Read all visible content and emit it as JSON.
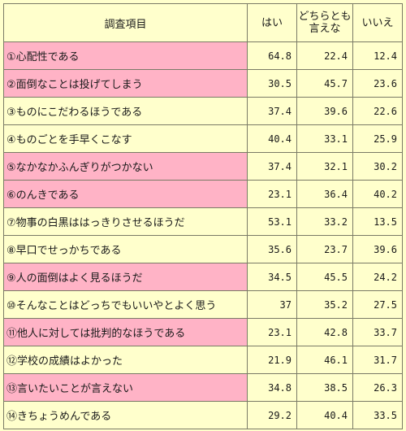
{
  "table": {
    "headers": {
      "item": "調査項目",
      "yes": "はい",
      "neither": "どちらとも言えな",
      "no": "いいえ"
    },
    "rows": [
      {
        "label": "①心配性である",
        "highlight": true,
        "yes": "64.8",
        "neither": "22.4",
        "no": "12.4"
      },
      {
        "label": "②面倒なことは投げてしまう",
        "highlight": true,
        "yes": "30.5",
        "neither": "45.7",
        "no": "23.6"
      },
      {
        "label": "③ものにこだわるほうである",
        "highlight": false,
        "yes": "37.4",
        "neither": "39.6",
        "no": "22.6"
      },
      {
        "label": "④ものごとを手早くこなす",
        "highlight": false,
        "yes": "40.4",
        "neither": "33.1",
        "no": "25.9"
      },
      {
        "label": "⑤なかなかふんぎりがつかない",
        "highlight": true,
        "yes": "37.4",
        "neither": "32.1",
        "no": "30.2"
      },
      {
        "label": "⑥のんきである",
        "highlight": true,
        "yes": "23.1",
        "neither": "36.4",
        "no": "40.2"
      },
      {
        "label": "⑦物事の白黒ははっきりさせるほうだ",
        "highlight": false,
        "yes": "53.1",
        "neither": "33.2",
        "no": "13.5"
      },
      {
        "label": "⑧早口でせっかちである",
        "highlight": false,
        "yes": "35.6",
        "neither": "23.7",
        "no": "39.6"
      },
      {
        "label": "⑨人の面倒はよく見るほうだ",
        "highlight": true,
        "yes": "34.5",
        "neither": "45.5",
        "no": "24.2"
      },
      {
        "label": "⑩そんなことはどっちでもいいやとよく思う",
        "highlight": false,
        "yes": "37",
        "neither": "35.2",
        "no": "27.5"
      },
      {
        "label": "⑪他人に対しては批判的なほうである",
        "highlight": true,
        "yes": "23.1",
        "neither": "42.8",
        "no": "33.7"
      },
      {
        "label": "⑫学校の成績はよかった",
        "highlight": false,
        "yes": "21.9",
        "neither": "46.1",
        "no": "31.7"
      },
      {
        "label": "⑬言いたいことが言えない",
        "highlight": true,
        "yes": "34.8",
        "neither": "38.5",
        "no": "26.3"
      },
      {
        "label": "⑭きちょうめんである",
        "highlight": false,
        "yes": "29.2",
        "neither": "40.4",
        "no": "33.5"
      }
    ]
  },
  "colors": {
    "background": "#ffffcc",
    "highlight": "#ffb3c6",
    "border": "#7a7a66"
  }
}
